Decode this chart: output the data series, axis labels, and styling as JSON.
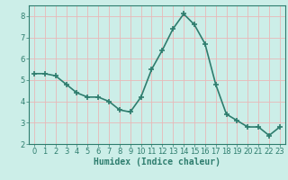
{
  "x": [
    0,
    1,
    2,
    3,
    4,
    5,
    6,
    7,
    8,
    9,
    10,
    11,
    12,
    13,
    14,
    15,
    16,
    17,
    18,
    19,
    20,
    21,
    22,
    23
  ],
  "y": [
    5.3,
    5.3,
    5.2,
    4.8,
    4.4,
    4.2,
    4.2,
    4.0,
    3.6,
    3.5,
    4.2,
    5.5,
    6.4,
    7.4,
    8.1,
    7.6,
    6.7,
    4.8,
    3.4,
    3.1,
    2.8,
    2.8,
    2.4,
    2.8
  ],
  "line_color": "#2e7d6e",
  "marker": "+",
  "marker_size": 4,
  "background_color": "#cceee8",
  "grid_color": "#e8b8b8",
  "xlabel": "Humidex (Indice chaleur)",
  "xlabel_fontsize": 7,
  "ylim": [
    2,
    8.5
  ],
  "xlim": [
    -0.5,
    23.5
  ],
  "yticks": [
    2,
    3,
    4,
    5,
    6,
    7,
    8
  ],
  "xticks": [
    0,
    1,
    2,
    3,
    4,
    5,
    6,
    7,
    8,
    9,
    10,
    11,
    12,
    13,
    14,
    15,
    16,
    17,
    18,
    19,
    20,
    21,
    22,
    23
  ],
  "tick_fontsize": 6,
  "line_width": 1.2,
  "spine_color": "#2e7d6e"
}
